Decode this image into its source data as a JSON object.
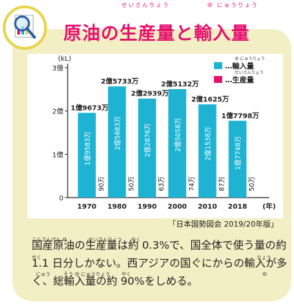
{
  "header": {
    "title": "原油の生産量と輸入量",
    "ruby_seisanryou": "せいさんりょう",
    "ruby_yunyuuryou": "ゆ にゅうりょう"
  },
  "chart_data": {
    "type": "bar",
    "title": "",
    "unit_label": "(kL)",
    "x_unit_label": "(年)",
    "categories": [
      "1970",
      "1980",
      "1990",
      "2000",
      "2010",
      "2018"
    ],
    "y_ticks": [
      {
        "value": 0,
        "label": "0"
      },
      {
        "value": 10000,
        "label": "1億"
      },
      {
        "value": 20000,
        "label": "2億"
      },
      {
        "value": 30000,
        "label": "3億"
      }
    ],
    "ylim": [
      0,
      30000
    ],
    "units_note": "values in 万kL",
    "series": [
      {
        "name": "輸入量",
        "color": "#1fb3d3",
        "values": [
          19583,
          25683,
          22876,
          25058,
          21538,
          17748
        ],
        "labels": [
          "1億9583万",
          "2億5683万",
          "2億2876万",
          "2億5058万",
          "2億1538万",
          "1億7748万"
        ]
      },
      {
        "name": "生産量",
        "color": "#e6106e",
        "values": [
          90,
          50,
          63,
          74,
          87,
          50
        ],
        "labels": [
          "90万",
          "50万",
          "63万",
          "74万",
          "87万",
          "50万"
        ]
      }
    ],
    "totals": [
      19673,
      25733,
      22939,
      25132,
      21625,
      17798
    ],
    "total_labels": [
      "1億9673万",
      "2億5733万",
      "2億2939万",
      "2億5132万",
      "2億1625万",
      "1億7798万"
    ],
    "legend": {
      "position": "top-right",
      "items": [
        {
          "label": "…輸入量",
          "ruby": "ゆ にゅうりょう",
          "color": "#1fb3d3"
        },
        {
          "label": "…生産量",
          "ruby": "せいさんりょう",
          "color": "#e6106e"
        }
      ]
    }
  },
  "source": "「日本国勢図会 2019/20年版」",
  "body": {
    "text": "国産原油の生産量は約 0.3%で、国全体で使う量の約 1.1 日分しかない。西アジアの国ぐにからの輸入が多く、総輸入量の約 90%をしめる。",
    "ruby": [
      {
        "text": "こくさんげん ゆ",
        "at": "kokusan"
      },
      {
        "text": "せいさんりょう",
        "at": "seisanryou"
      },
      {
        "text": "やく",
        "at": "yaku1"
      },
      {
        "text": "りょう",
        "at": "ryou"
      },
      {
        "text": "やく",
        "at": "yaku2"
      },
      {
        "text": "ゆ",
        "at": "yu"
      },
      {
        "text": "にゅう",
        "at": "nyuu"
      },
      {
        "text": "そう ゆ にゅうりょう",
        "at": "souyunyuuryou"
      },
      {
        "text": "やく",
        "at": "yaku3"
      }
    ]
  },
  "icon": "magnifier-document-icon"
}
